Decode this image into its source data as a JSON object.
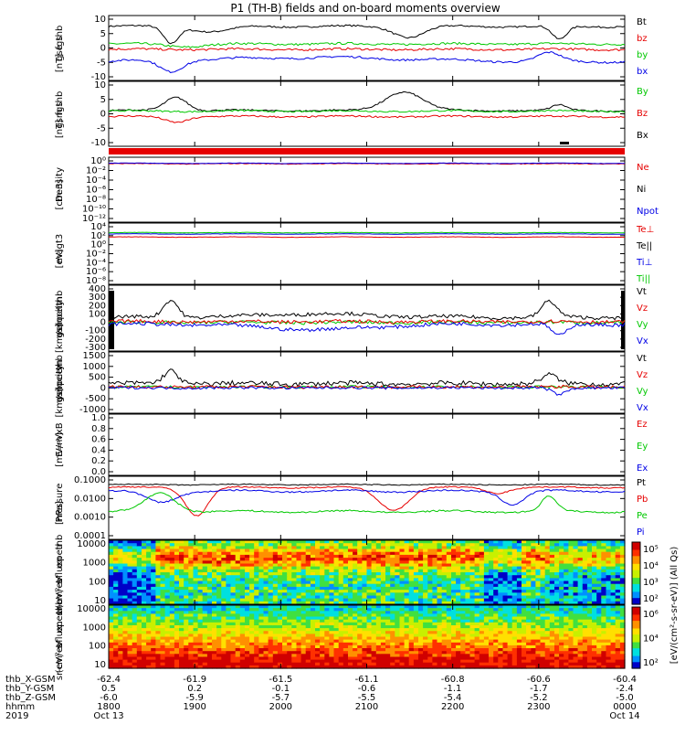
{
  "title": "P1 (TH-B) fields and on-board moments overview",
  "colors": {
    "black": "#000000",
    "red": "#e60000",
    "green": "#00c800",
    "blue": "#0000e6",
    "darkgreen": "#008000"
  },
  "chart_data": [
    {
      "id": "fgs_gse",
      "type": "line",
      "ylabel": [
        "thb",
        "fgs",
        "gse",
        "[nT]"
      ],
      "yticks": [
        "10",
        "5",
        "0",
        "-5",
        "-10"
      ],
      "legend": [
        {
          "name": "Bt",
          "color": "black"
        },
        {
          "name": "bz",
          "color": "red"
        },
        {
          "name": "by",
          "color": "green"
        },
        {
          "name": "bx",
          "color": "blue"
        }
      ]
    },
    {
      "id": "fgs_gsm",
      "type": "line",
      "ylabel": [
        "thb",
        "fgs",
        "gsm",
        "[nT]"
      ],
      "yticks": [
        "10",
        "5",
        "0",
        "-5",
        "-10"
      ],
      "legend": [
        {
          "name": "By",
          "color": "green"
        },
        {
          "name": "Bz",
          "color": "red"
        },
        {
          "name": "Bx",
          "color": "black"
        }
      ]
    },
    {
      "id": "density",
      "type": "line",
      "log": true,
      "ylabel": [
        "Density",
        "[cm-3]"
      ],
      "yticks": [
        "10⁰",
        "10⁻²",
        "10⁻⁴",
        "10⁻⁶",
        "10⁻⁸",
        "10⁻¹⁰",
        "10⁻¹²"
      ],
      "legend": [
        {
          "name": "Ne",
          "color": "red"
        },
        {
          "name": "Ni",
          "color": "black"
        },
        {
          "name": "Npot",
          "color": "blue"
        }
      ]
    },
    {
      "id": "temp",
      "type": "line",
      "log": true,
      "ylabel": [
        "magt3",
        "[eV]"
      ],
      "yticks": [
        "10⁴",
        "10²",
        "10⁰",
        "10⁻²",
        "10⁻⁴",
        "10⁻⁶",
        "10⁻⁸"
      ],
      "legend": [
        {
          "name": "Te⊥",
          "color": "red"
        },
        {
          "name": "Te||",
          "color": "black"
        },
        {
          "name": "Ti⊥",
          "color": "blue"
        },
        {
          "name": "Ti||",
          "color": "green"
        }
      ]
    },
    {
      "id": "peim",
      "type": "line",
      "ylabel": [
        "thb",
        "peim",
        "velocity",
        "gsm",
        "[km/s]"
      ],
      "yticks": [
        "400",
        "300",
        "200",
        "100",
        "0",
        "-100",
        "-200",
        "-300"
      ],
      "legend": [
        {
          "name": "Vt",
          "color": "black"
        },
        {
          "name": "Vz",
          "color": "red"
        },
        {
          "name": "Vy",
          "color": "green"
        },
        {
          "name": "Vx",
          "color": "blue"
        }
      ]
    },
    {
      "id": "peem",
      "type": "line",
      "ylabel": [
        "thb",
        "peem",
        "velocity",
        "gsm",
        "[km/s]"
      ],
      "yticks": [
        "1500",
        "1000",
        "500",
        "0",
        "-500",
        "-1000"
      ],
      "legend": [
        {
          "name": "Vt",
          "color": "black"
        },
        {
          "name": "Vz",
          "color": "red"
        },
        {
          "name": "Vy",
          "color": "green"
        },
        {
          "name": "Vx",
          "color": "blue"
        }
      ]
    },
    {
      "id": "efield",
      "type": "line",
      "ylabel": [
        "E=-VxB",
        "[mV/m]"
      ],
      "yticks": [
        "1.0",
        "0.8",
        "0.6",
        "0.4",
        "0.2",
        "0.0"
      ],
      "legend": [
        {
          "name": "Ez",
          "color": "red"
        },
        {
          "name": "Ey",
          "color": "green"
        },
        {
          "name": "Ex",
          "color": "blue"
        }
      ]
    },
    {
      "id": "pressure",
      "type": "line",
      "log": true,
      "ylabel": [
        "Pressure",
        "[nPa]"
      ],
      "yticks": [
        "0.1000",
        "0.0100",
        "0.0010",
        "0.0001"
      ],
      "legend": [
        {
          "name": "Pt",
          "color": "black"
        },
        {
          "name": "Pb",
          "color": "red"
        },
        {
          "name": "Pe",
          "color": "green"
        },
        {
          "name": "Pi",
          "color": "blue"
        }
      ]
    },
    {
      "id": "peir",
      "type": "heatmap",
      "ylabel": [
        "thb",
        "peir",
        "en",
        "eflux",
        "eV",
        "(cm²-s-",
        "sr-eV)"
      ],
      "yticks": [
        "10000",
        "1000",
        "100",
        "10"
      ]
    },
    {
      "id": "peer",
      "type": "heatmap",
      "ylabel": [
        "thb",
        "peer",
        "en",
        "eflux",
        "eV",
        "(cm²-s-",
        "sr-eV)"
      ],
      "yticks": [
        "10000",
        "1000",
        "100",
        "10"
      ]
    }
  ],
  "colorbar1": {
    "ticks": [
      "10⁵",
      "10⁴",
      "10³",
      "10²"
    ]
  },
  "colorbar2": {
    "ticks": [
      "10⁶",
      "10⁴",
      "10²"
    ]
  },
  "colorbar_label": "[eV/(cm²-s-sr-eV)] (All Qs)",
  "axis": {
    "rows": [
      {
        "label": "thb_X-GSM",
        "values": [
          "-62.4",
          "-61.9",
          "-61.5",
          "-61.1",
          "-60.8",
          "-60.6",
          "-60.4"
        ]
      },
      {
        "label": "thb_Y-GSM",
        "values": [
          "0.5",
          "0.2",
          "-0.1",
          "-0.6",
          "-1.1",
          "-1.7",
          "-2.4"
        ]
      },
      {
        "label": "thb_Z-GSM",
        "values": [
          "-6.0",
          "-5.9",
          "-5.7",
          "-5.5",
          "-5.4",
          "-5.2",
          "-5.0"
        ]
      },
      {
        "label": "hhmm",
        "values": [
          "1800",
          "1900",
          "2000",
          "2100",
          "2200",
          "2300",
          "0000"
        ]
      },
      {
        "label": "2019",
        "values": [
          "Oct 13",
          "",
          "",
          "",
          "",
          "",
          "Oct 14"
        ]
      }
    ]
  }
}
